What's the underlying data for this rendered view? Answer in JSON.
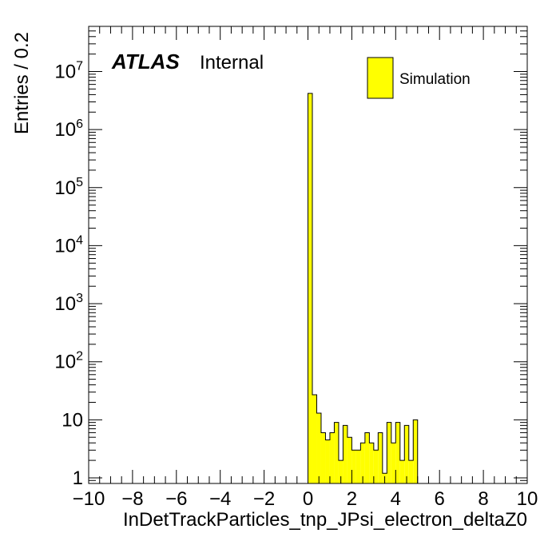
{
  "chart_data": {
    "type": "histogram",
    "xlabel": "InDetTrackParticles_tnp_JPsi_electron_deltaZ0",
    "ylabel": "Entries / 0.2",
    "xlim": [
      -10,
      10
    ],
    "ylim": [
      0.8,
      60000000
    ],
    "y_scale": "log",
    "bin_width": 0.2,
    "x_ticks": [
      "−10",
      "−8",
      "−6",
      "−4",
      "−2",
      "0",
      "2",
      "4",
      "6",
      "8",
      "10"
    ],
    "x_tick_values": [
      -10,
      -8,
      -6,
      -4,
      -2,
      0,
      2,
      4,
      6,
      8,
      10
    ],
    "y_ticks": [
      {
        "value": 1,
        "base": "1",
        "exp": ""
      },
      {
        "value": 10,
        "base": "10",
        "exp": ""
      },
      {
        "value": 100,
        "base": "10",
        "exp": "2"
      },
      {
        "value": 1000,
        "base": "10",
        "exp": "3"
      },
      {
        "value": 10000,
        "base": "10",
        "exp": "4"
      },
      {
        "value": 100000,
        "base": "10",
        "exp": "5"
      },
      {
        "value": 1000000,
        "base": "10",
        "exp": "6"
      },
      {
        "value": 10000000,
        "base": "10",
        "exp": "7"
      }
    ],
    "series": [
      {
        "name": "Simulation",
        "color": "#ffff00",
        "line_color": "#000000",
        "bins": [
          {
            "x": 0.0,
            "y": 4200000
          },
          {
            "x": 0.2,
            "y": 27
          },
          {
            "x": 0.4,
            "y": 13
          },
          {
            "x": 0.6,
            "y": 6
          },
          {
            "x": 0.8,
            "y": 4.5
          },
          {
            "x": 1.0,
            "y": 6
          },
          {
            "x": 1.2,
            "y": 9
          },
          {
            "x": 1.4,
            "y": 2
          },
          {
            "x": 1.6,
            "y": 8
          },
          {
            "x": 1.8,
            "y": 5
          },
          {
            "x": 2.0,
            "y": 3
          },
          {
            "x": 2.2,
            "y": 3
          },
          {
            "x": 2.4,
            "y": 4
          },
          {
            "x": 2.6,
            "y": 6
          },
          {
            "x": 2.8,
            "y": 4
          },
          {
            "x": 3.0,
            "y": 3
          },
          {
            "x": 3.2,
            "y": 6
          },
          {
            "x": 3.4,
            "y": 1.2
          },
          {
            "x": 3.6,
            "y": 9
          },
          {
            "x": 3.8,
            "y": 4
          },
          {
            "x": 4.0,
            "y": 9
          },
          {
            "x": 4.2,
            "y": 2
          },
          {
            "x": 4.4,
            "y": 8
          },
          {
            "x": 4.6,
            "y": 2
          },
          {
            "x": 4.8,
            "y": 10
          }
        ]
      }
    ],
    "legend": {
      "position": "top-right",
      "entries": [
        "Simulation"
      ]
    },
    "annotations": {
      "experiment": "ATLAS",
      "status": "Internal"
    }
  }
}
